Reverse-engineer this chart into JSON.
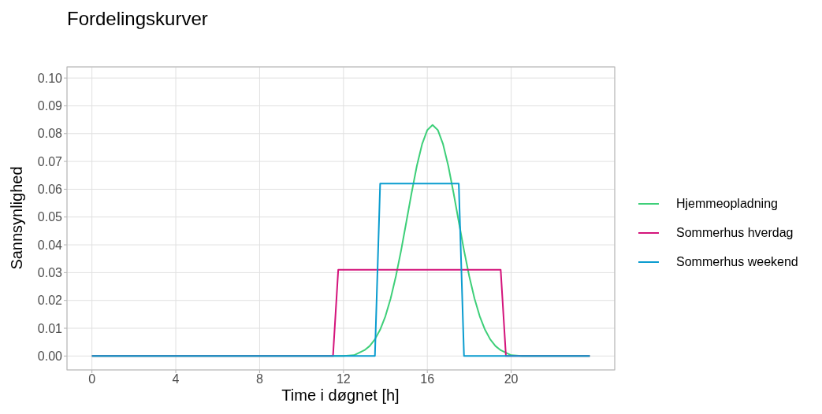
{
  "chart_data": {
    "type": "line",
    "title": "Fordelingskurver",
    "xlabel": "Time i døgnet [h]",
    "ylabel": "Sannsynlighed",
    "series": [
      {
        "name": "Hjemmeopladning",
        "color": "#3ecf79",
        "x": [
          0,
          12,
          12.5,
          12.75,
          13,
          13.25,
          13.5,
          13.75,
          14,
          14.25,
          14.5,
          14.75,
          15,
          15.25,
          15.5,
          15.75,
          16,
          16.25,
          16.5,
          16.75,
          17,
          17.25,
          17.5,
          17.75,
          18,
          18.25,
          18.5,
          18.75,
          19,
          19.25,
          19.5,
          19.75,
          20,
          20.5,
          21,
          23.75
        ],
        "values": [
          0,
          0,
          0.0003,
          0.0012,
          0.0021,
          0.0036,
          0.006,
          0.0095,
          0.0143,
          0.0207,
          0.0287,
          0.038,
          0.0483,
          0.0587,
          0.0684,
          0.0762,
          0.0813,
          0.0831,
          0.0813,
          0.0762,
          0.0684,
          0.0587,
          0.0483,
          0.038,
          0.0287,
          0.0207,
          0.0143,
          0.0095,
          0.006,
          0.0036,
          0.0021,
          0.0012,
          0.0003,
          0,
          0,
          0
        ]
      },
      {
        "name": "Sommerhus hverdag",
        "color": "#d4147b",
        "x": [
          0,
          11.5,
          11.75,
          19.5,
          19.75,
          23.75
        ],
        "values": [
          0,
          0,
          0.031,
          0.031,
          0,
          0
        ]
      },
      {
        "name": "Sommerhus weekend",
        "color": "#0a9ccf",
        "x": [
          0,
          13.5,
          13.75,
          17.5,
          17.75,
          23.75
        ],
        "values": [
          0,
          0,
          0.062,
          0.062,
          0,
          0
        ]
      }
    ],
    "xlim": [
      -1.19,
      24.94
    ],
    "xticks": [
      0,
      4,
      8,
      12,
      16,
      20
    ],
    "ylim": [
      -0.005,
      0.104
    ],
    "yticks": [
      {
        "value": 0,
        "label": "0.00"
      },
      {
        "value": 0.01,
        "label": "0.01"
      },
      {
        "value": 0.02,
        "label": "0.02"
      },
      {
        "value": 0.03,
        "label": "0.03"
      },
      {
        "value": 0.04,
        "label": "0.04"
      },
      {
        "value": 0.05,
        "label": "0.05"
      },
      {
        "value": 0.06,
        "label": "0.06"
      },
      {
        "value": 0.07,
        "label": "0.07"
      },
      {
        "value": 0.08,
        "label": "0.08"
      },
      {
        "value": 0.09,
        "label": "0.09"
      },
      {
        "value": 0.1,
        "label": "0.10"
      }
    ],
    "grid": true,
    "legend": "right",
    "marker": "none",
    "line_style": "solid"
  }
}
